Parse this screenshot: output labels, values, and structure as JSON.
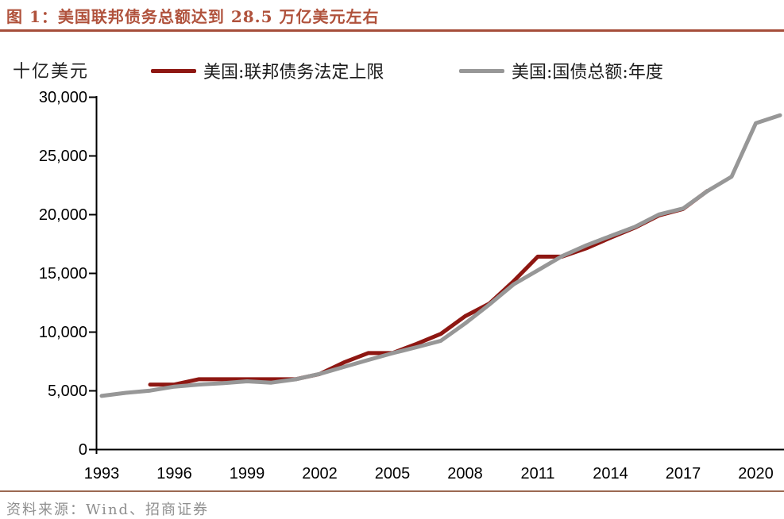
{
  "figure": {
    "title": "图 1：美国联邦债务总额达到 28.5 万亿美元左右",
    "source": "资料来源：Wind、招商证券"
  },
  "colors": {
    "title_text": "#b0523c",
    "title_rule": "#a54d39",
    "source_rule": "#9b6952",
    "source_text": "#8f8f8f",
    "axis": "#000000",
    "debt_limit_line": "#8e1712",
    "total_debt_line": "#979797"
  },
  "chart_data": {
    "type": "line",
    "title": "美国联邦债务总额达到 28.5 万亿美元左右",
    "ylabel": "十亿美元",
    "unit_label": "十亿美元",
    "xlabel": "",
    "xlim": [
      1993,
      2021.2
    ],
    "ylim": [
      0,
      30000
    ],
    "yticks": [
      0,
      5000,
      10000,
      15000,
      20000,
      25000,
      30000
    ],
    "xticks": [
      1993,
      1996,
      1999,
      2002,
      2005,
      2008,
      2011,
      2014,
      2017,
      2020
    ],
    "grid": false,
    "legend_position": "top",
    "series": [
      {
        "id": "debt-limit",
        "name": "美国:联邦债务法定上限",
        "color": "#8e1712",
        "points": [
          [
            1995,
            5500
          ],
          [
            1996,
            5500
          ],
          [
            1997,
            5950
          ],
          [
            1998,
            5950
          ],
          [
            1999,
            5950
          ],
          [
            2000,
            5950
          ],
          [
            2001,
            5950
          ],
          [
            2002,
            6400
          ],
          [
            2003,
            7384
          ],
          [
            2004,
            8184
          ],
          [
            2005,
            8184
          ],
          [
            2006,
            8965
          ],
          [
            2007,
            9815
          ],
          [
            2008,
            11315
          ],
          [
            2009,
            12394
          ],
          [
            2010,
            14294
          ],
          [
            2011,
            16394
          ],
          [
            2012,
            16394
          ],
          [
            2013,
            17100
          ],
          [
            2014,
            18000
          ],
          [
            2015,
            18850
          ],
          [
            2016,
            19900
          ],
          [
            2017,
            20450
          ],
          [
            2018,
            21988
          ]
        ]
      },
      {
        "id": "total-debt",
        "name": "美国:国债总额:年度",
        "color": "#979797",
        "points": [
          [
            1993,
            4536
          ],
          [
            1994,
            4800
          ],
          [
            1995,
            4989
          ],
          [
            1996,
            5323
          ],
          [
            1997,
            5502
          ],
          [
            1998,
            5614
          ],
          [
            1999,
            5776
          ],
          [
            2000,
            5662
          ],
          [
            2001,
            5943
          ],
          [
            2002,
            6406
          ],
          [
            2003,
            6998
          ],
          [
            2004,
            7596
          ],
          [
            2005,
            8170
          ],
          [
            2006,
            8680
          ],
          [
            2007,
            9229
          ],
          [
            2008,
            10700
          ],
          [
            2009,
            12311
          ],
          [
            2010,
            14025
          ],
          [
            2011,
            15223
          ],
          [
            2012,
            16433
          ],
          [
            2013,
            17352
          ],
          [
            2014,
            18141
          ],
          [
            2015,
            18922
          ],
          [
            2016,
            19977
          ],
          [
            2017,
            20493
          ],
          [
            2018,
            21974
          ],
          [
            2019,
            23201
          ],
          [
            2020,
            27748
          ],
          [
            2021,
            28430
          ]
        ]
      }
    ]
  }
}
